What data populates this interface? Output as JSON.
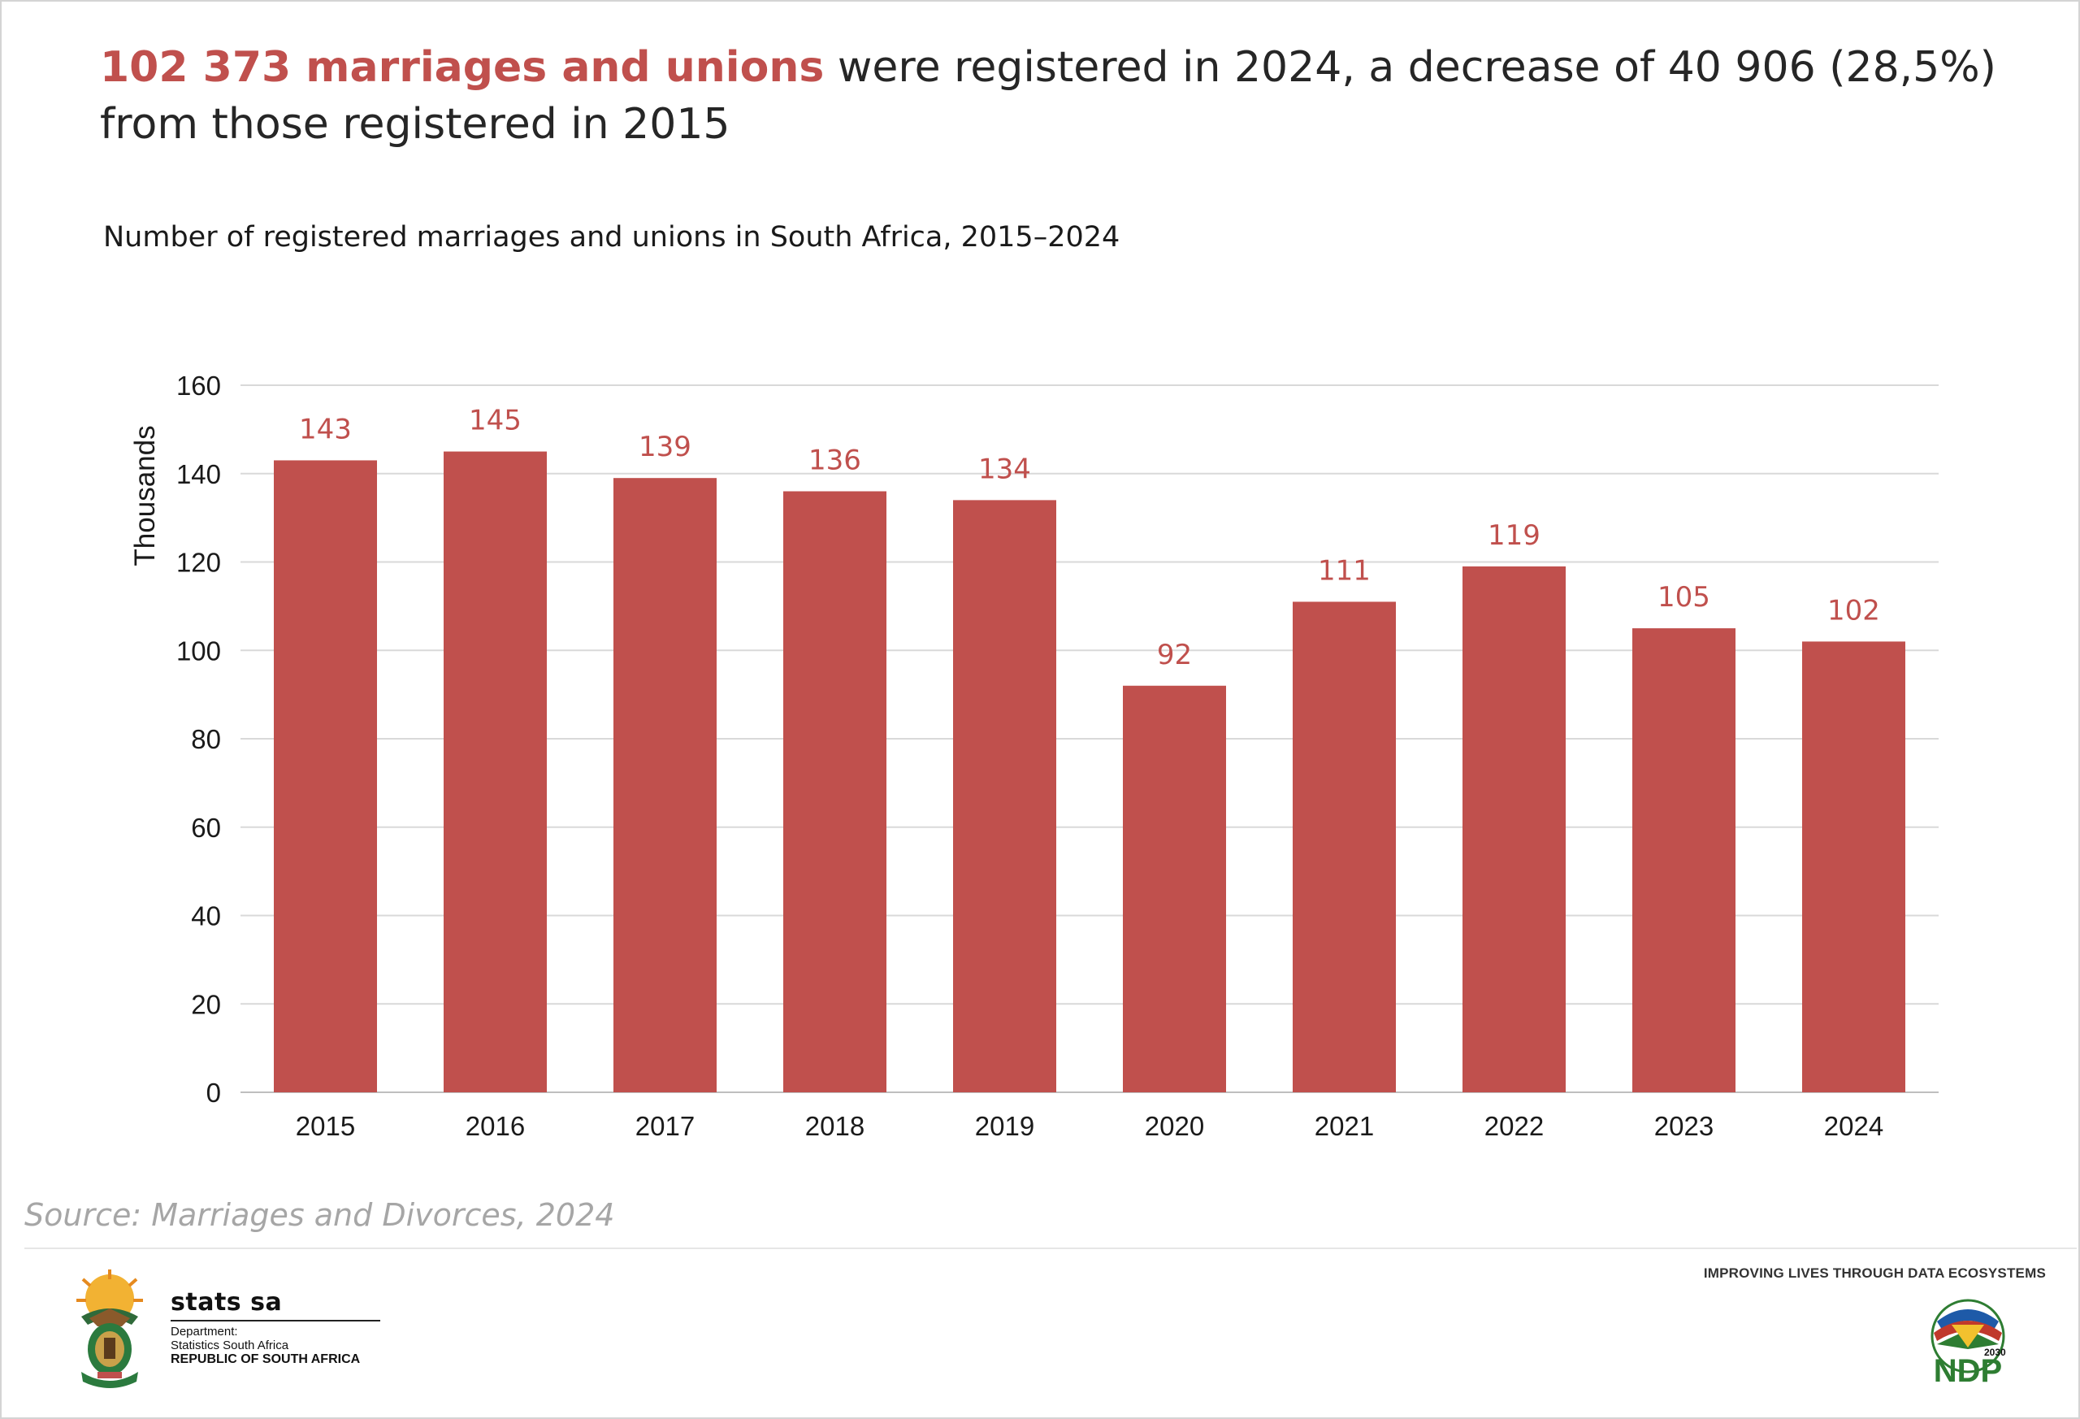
{
  "headline": {
    "highlight": "102 373 marriages and unions",
    "rest": " were registered in 2024, a decrease of 40 906 (28,5%) from those registered in 2015"
  },
  "subtitle": "Number of registered marriages and unions in South Africa, 2015–2024",
  "chart_data": {
    "type": "bar",
    "title": "",
    "xlabel": "",
    "ylabel": "Thousands",
    "ylim": [
      0,
      160
    ],
    "yticks": [
      "0",
      "20",
      "40",
      "60",
      "80",
      "100",
      "120",
      "140",
      "160"
    ],
    "grid": true,
    "bar_color": "#c0504d",
    "categories": [
      "2015",
      "2016",
      "2017",
      "2018",
      "2019",
      "2020",
      "2021",
      "2022",
      "2023",
      "2024"
    ],
    "values": [
      143,
      145,
      139,
      136,
      134,
      92,
      111,
      119,
      105,
      102
    ],
    "data_labels": [
      "143",
      "145",
      "139",
      "136",
      "134",
      "92",
      "111",
      "119",
      "105",
      "102"
    ]
  },
  "source": "Source: Marriages and Divorces, 2024",
  "footer": {
    "brand": "stats sa",
    "department_line1": "Department:",
    "department_line2": "Statistics South Africa",
    "country": "REPUBLIC OF SOUTH AFRICA",
    "tagline": "IMPROVING LIVES THROUGH DATA ECOSYSTEMS",
    "ndp_year": "2030",
    "ndp_label": "NDP"
  },
  "colors": {
    "accent": "#c0504d",
    "text": "#262626",
    "gridline": "#d9d9d9",
    "source": "#a6a6a6"
  }
}
